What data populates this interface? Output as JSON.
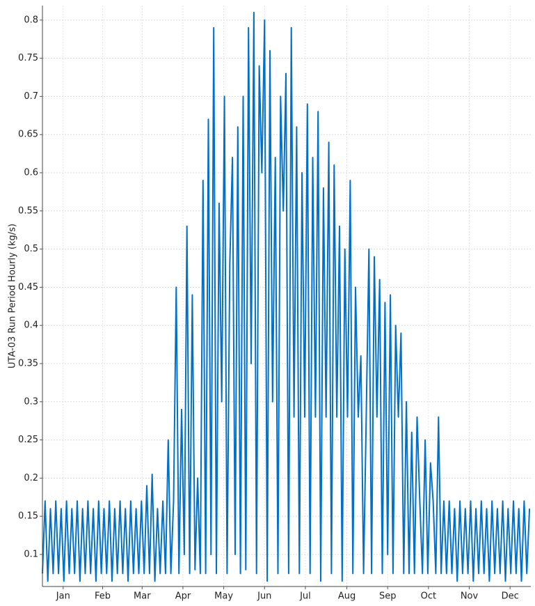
{
  "chart_data": {
    "type": "line",
    "y_label": "UTA-03 Run Period Hourly (kg/s)",
    "color": "#0070c8",
    "grid": true,
    "xlim": [
      0,
      365
    ],
    "xticks": [
      {
        "value": 15.5,
        "label": "Jan"
      },
      {
        "value": 45,
        "label": "Feb"
      },
      {
        "value": 74.5,
        "label": "Mar"
      },
      {
        "value": 105,
        "label": "Apr"
      },
      {
        "value": 135.5,
        "label": "May"
      },
      {
        "value": 166,
        "label": "Jun"
      },
      {
        "value": 196.5,
        "label": "Jul"
      },
      {
        "value": 227.5,
        "label": "Aug"
      },
      {
        "value": 258,
        "label": "Sep"
      },
      {
        "value": 288.5,
        "label": "Oct"
      },
      {
        "value": 319,
        "label": "Nov"
      },
      {
        "value": 349.5,
        "label": "Dec"
      }
    ],
    "ylim": [
      0.058,
      0.819
    ],
    "yticks": [
      0.1,
      0.15,
      0.2,
      0.25,
      0.3,
      0.35,
      0.4,
      0.45,
      0.5,
      0.55,
      0.6,
      0.65,
      0.7,
      0.75,
      0.8
    ],
    "x": [
      0,
      2,
      4,
      6,
      8,
      10,
      12,
      14,
      16,
      18,
      20,
      22,
      24,
      26,
      28,
      30,
      32,
      34,
      36,
      38,
      40,
      42,
      44,
      46,
      48,
      50,
      52,
      54,
      56,
      58,
      60,
      62,
      64,
      66,
      68,
      70,
      72,
      74,
      76,
      78,
      80,
      82,
      84,
      86,
      88,
      90,
      92,
      94,
      96,
      98,
      100,
      102,
      104,
      106,
      108,
      110,
      112,
      114,
      116,
      118,
      120,
      122,
      124,
      126,
      128,
      130,
      132,
      134,
      136,
      138,
      140,
      142,
      144,
      146,
      148,
      150,
      152,
      154,
      156,
      158,
      160,
      162,
      164,
      166,
      168,
      170,
      172,
      174,
      176,
      178,
      180,
      182,
      184,
      186,
      188,
      190,
      192,
      194,
      196,
      198,
      200,
      202,
      204,
      206,
      208,
      210,
      212,
      214,
      216,
      218,
      220,
      222,
      224,
      226,
      228,
      230,
      232,
      234,
      236,
      238,
      240,
      242,
      244,
      246,
      248,
      250,
      252,
      254,
      256,
      258,
      260,
      262,
      264,
      266,
      268,
      270,
      272,
      274,
      276,
      278,
      280,
      282,
      284,
      286,
      288,
      290,
      292,
      294,
      296,
      298,
      300,
      302,
      304,
      306,
      308,
      310,
      312,
      314,
      316,
      318,
      320,
      322,
      324,
      326,
      328,
      330,
      332,
      334,
      336,
      338,
      340,
      342,
      344,
      346,
      348,
      350,
      352,
      354,
      356,
      358,
      360,
      362,
      364
    ],
    "values": [
      0.075,
      0.17,
      0.065,
      0.16,
      0.075,
      0.17,
      0.075,
      0.16,
      0.065,
      0.17,
      0.075,
      0.16,
      0.075,
      0.17,
      0.065,
      0.16,
      0.075,
      0.17,
      0.075,
      0.16,
      0.065,
      0.17,
      0.075,
      0.16,
      0.075,
      0.17,
      0.065,
      0.16,
      0.075,
      0.17,
      0.075,
      0.16,
      0.065,
      0.17,
      0.075,
      0.16,
      0.075,
      0.17,
      0.075,
      0.19,
      0.075,
      0.205,
      0.065,
      0.16,
      0.075,
      0.17,
      0.075,
      0.25,
      0.075,
      0.17,
      0.45,
      0.075,
      0.29,
      0.1,
      0.53,
      0.075,
      0.44,
      0.08,
      0.2,
      0.075,
      0.59,
      0.075,
      0.67,
      0.1,
      0.79,
      0.075,
      0.56,
      0.3,
      0.7,
      0.075,
      0.48,
      0.62,
      0.1,
      0.66,
      0.075,
      0.7,
      0.08,
      0.79,
      0.35,
      0.81,
      0.075,
      0.74,
      0.6,
      0.8,
      0.065,
      0.76,
      0.3,
      0.62,
      0.075,
      0.7,
      0.55,
      0.73,
      0.075,
      0.79,
      0.28,
      0.66,
      0.075,
      0.6,
      0.28,
      0.69,
      0.075,
      0.62,
      0.28,
      0.68,
      0.065,
      0.58,
      0.28,
      0.64,
      0.075,
      0.61,
      0.28,
      0.53,
      0.065,
      0.5,
      0.28,
      0.59,
      0.075,
      0.45,
      0.28,
      0.36,
      0.075,
      0.28,
      0.5,
      0.075,
      0.49,
      0.28,
      0.46,
      0.075,
      0.43,
      0.1,
      0.44,
      0.075,
      0.4,
      0.28,
      0.39,
      0.075,
      0.3,
      0.075,
      0.26,
      0.075,
      0.28,
      0.17,
      0.075,
      0.25,
      0.075,
      0.22,
      0.17,
      0.075,
      0.28,
      0.075,
      0.17,
      0.075,
      0.17,
      0.075,
      0.16,
      0.065,
      0.17,
      0.075,
      0.16,
      0.075,
      0.17,
      0.065,
      0.16,
      0.075,
      0.17,
      0.075,
      0.16,
      0.065,
      0.17,
      0.075,
      0.16,
      0.075,
      0.17,
      0.065,
      0.16,
      0.075,
      0.17,
      0.075,
      0.16,
      0.065,
      0.17,
      0.075,
      0.16
    ]
  }
}
